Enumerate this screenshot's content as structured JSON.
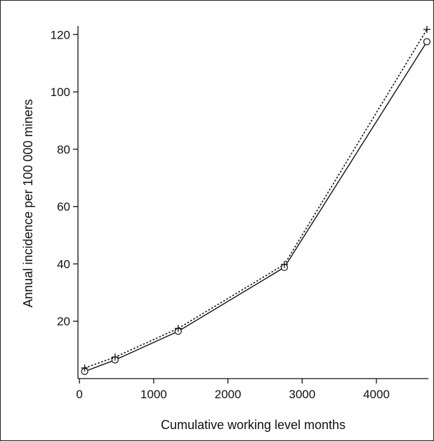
{
  "chart_data": {
    "type": "line",
    "title": "",
    "xlabel": "Cumulative working level months",
    "ylabel": "Annual incidence per 100 000 miners",
    "xlim": [
      -20,
      4700
    ],
    "ylim": [
      0,
      123
    ],
    "xticks": [
      0,
      1000,
      2000,
      3000,
      4000
    ],
    "yticks": [
      20,
      40,
      60,
      80,
      100,
      120
    ],
    "grid": false,
    "legend": "none",
    "series": [
      {
        "style": "solid",
        "marker": "circle",
        "color": "#111111",
        "x": [
          70,
          480,
          1330,
          2760,
          4680
        ],
        "y": [
          2.5,
          6.5,
          16.5,
          38.8,
          117.5
        ]
      },
      {
        "style": "dotted",
        "marker": "plus",
        "color": "#111111",
        "x": [
          70,
          480,
          1330,
          2760,
          4680
        ],
        "y": [
          3.7,
          7.5,
          17.5,
          39.8,
          121.8
        ]
      }
    ]
  }
}
